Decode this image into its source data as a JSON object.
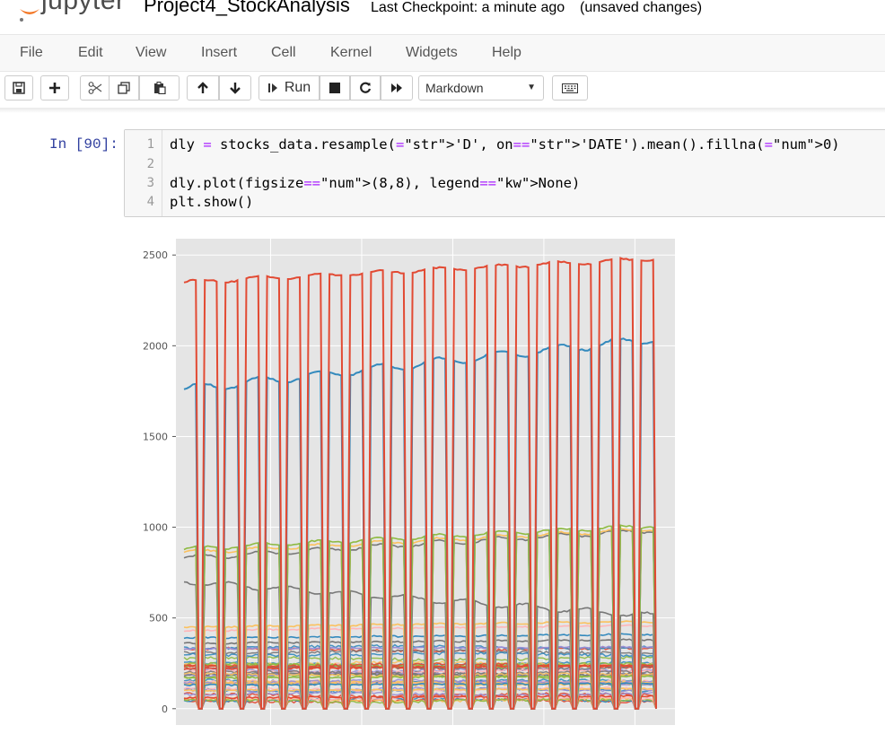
{
  "header": {
    "app_name": "jupyter",
    "notebook_name": "Project4_StockAnalysis",
    "checkpoint": "Last Checkpoint: a minute ago",
    "autosave_status": "(unsaved changes)"
  },
  "menu": [
    "File",
    "Edit",
    "View",
    "Insert",
    "Cell",
    "Kernel",
    "Widgets",
    "Help"
  ],
  "toolbar": {
    "run_label": "Run",
    "cell_type": "Markdown",
    "icons": [
      "save-icon",
      "plus-icon",
      "cut-icon",
      "copy-icon",
      "paste-icon",
      "arrow-up-icon",
      "arrow-down-icon",
      "run-icon",
      "stop-icon",
      "restart-icon",
      "fast-forward-icon",
      "keyboard-icon"
    ]
  },
  "cell": {
    "prompt": "In [90]:",
    "line_numbers": [
      "1",
      "2",
      "3",
      "4"
    ],
    "lines": [
      "dly = stocks_data.resample('D', on='DATE').mean().fillna(0)",
      "",
      "dly.plot(figsize=(8,8), legend=None)",
      "plt.show()"
    ]
  },
  "chart_data": {
    "type": "line",
    "xlabel": "",
    "ylabel": "",
    "yticks": [
      "0",
      "500",
      "1000",
      "1500",
      "2000",
      "2500"
    ],
    "ylim": [
      -90,
      2590
    ],
    "grid": true,
    "legend": "none",
    "x_count": 160,
    "series": [
      {
        "color": "#e24a33",
        "base": 2350,
        "top": 2480,
        "drops": true
      },
      {
        "color": "#348abd",
        "base": 1760,
        "top": 2040,
        "drops": true
      },
      {
        "color": "#8eba42",
        "base": 880,
        "top": 1010,
        "drops": false
      },
      {
        "color": "#fbc15e",
        "base": 860,
        "top": 990,
        "drops": false
      },
      {
        "color": "#777777",
        "base": 830,
        "top": 985,
        "drops": false
      },
      {
        "color": "#777777",
        "base": 700,
        "top": 510,
        "drops": false
      },
      {
        "color": "#fbc15e",
        "base": 450,
        "top": 480,
        "drops": false
      },
      {
        "color": "#ffb5b8",
        "base": 430,
        "top": 460,
        "drops": false
      },
      {
        "color": "#348abd",
        "base": 390,
        "top": 410,
        "drops": false
      },
      {
        "color": "#777777",
        "base": 360,
        "top": 380,
        "drops": false
      },
      {
        "color": "#988ed5",
        "base": 330,
        "top": 340,
        "drops": false
      },
      {
        "color": "#e24a33",
        "base": 220,
        "top": 240,
        "drops": false
      },
      {
        "color": "#8eba42",
        "base": 170,
        "top": 180,
        "drops": false
      },
      {
        "color": "#348abd",
        "base": 130,
        "top": 140,
        "drops": false
      },
      {
        "color": "#fbc15e",
        "base": 100,
        "top": 110,
        "drops": false
      },
      {
        "color": "#e24a33",
        "base": 60,
        "top": 70,
        "drops": false
      }
    ]
  }
}
